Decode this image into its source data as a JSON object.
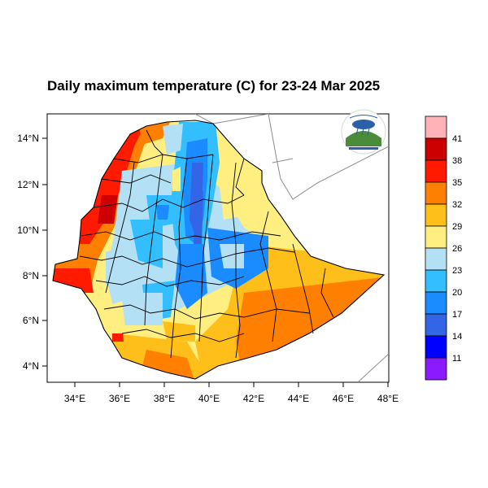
{
  "title": "Daily maximum temperature (C) for 23-24 Mar 2025",
  "axes": {
    "x_ticks": [
      "34°E",
      "36°E",
      "38°E",
      "40°E",
      "42°E",
      "44°E",
      "46°E",
      "48°E"
    ],
    "y_ticks": [
      "14°N",
      "12°N",
      "10°N",
      "8°N",
      "6°N",
      "4°N"
    ]
  },
  "colorbar": {
    "labels": [
      "41",
      "38",
      "35",
      "32",
      "29",
      "26",
      "23",
      "20",
      "17",
      "14",
      "11"
    ],
    "colors": [
      "#ffb3b8",
      "#cc0000",
      "#ff1a00",
      "#ff8000",
      "#ffbf1a",
      "#ffef80",
      "#b3e0f5",
      "#33bfff",
      "#1a8cff",
      "#3366e6",
      "#0000ff",
      "#8c1aff"
    ]
  },
  "logo": {
    "name": "ethiopian-meteorology-institute-logo",
    "text": "Ethiopian Meteorology Institute"
  },
  "palette": {
    "hot_red": "#ff1a00",
    "dark_red": "#cc0000",
    "orange": "#ff8000",
    "yellow_orange": "#ffbf1a",
    "light_yellow": "#ffef80",
    "light_blue": "#b3e0f5",
    "blue": "#1a8cff",
    "deep_blue": "#3366e6"
  }
}
